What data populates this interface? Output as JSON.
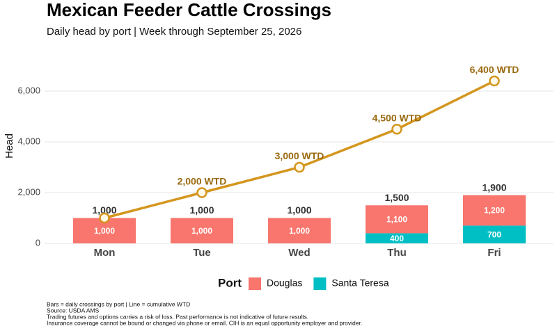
{
  "chart_data": {
    "type": "bar",
    "stacked": true,
    "title": "Mexican Feeder Cattle Crossings",
    "subtitle": "Daily head by port | Week through September 25, 2026",
    "y_label": "Head",
    "categories": [
      "Mon",
      "Tue",
      "Wed",
      "Thu",
      "Fri"
    ],
    "series": [
      {
        "name": "Santa Teresa",
        "color": "#00bfc4",
        "values": [
          0,
          0,
          0,
          400,
          700
        ],
        "value_labels": [
          null,
          null,
          null,
          "400",
          "700"
        ]
      },
      {
        "name": "Douglas",
        "color": "#f8766d",
        "values": [
          1000,
          1000,
          1000,
          1100,
          1200
        ],
        "value_labels": [
          "1,000",
          "1,000",
          "1,000",
          "1,100",
          "1,200"
        ]
      }
    ],
    "total_labels": [
      "1,000",
      "1,000",
      "1,000",
      "1,500",
      "1,900"
    ],
    "line": {
      "color": "#d4961e",
      "label_color": "#9a6a10",
      "values": [
        1000,
        2000,
        3000,
        4500,
        6400
      ],
      "value_labels": [
        null,
        "2,000 WTD",
        "3,000 WTD",
        "4,500 WTD",
        "6,400 WTD"
      ]
    },
    "ylim": [
      0,
      7000
    ],
    "yticks": [
      0,
      {
        "value": 2000,
        "label": "2,000"
      },
      {
        "value": 4000,
        "label": "4,000"
      },
      {
        "value": 6000,
        "label": "6,000"
      }
    ],
    "grid": true,
    "legend": {
      "title": "Port",
      "position": "bottom",
      "order": [
        1,
        0
      ]
    },
    "notes": [
      "Bars = daily crossings by port | Line = cumulative WTD",
      "Source: USDA AMS",
      "Trading futures and options carries a risk of loss. Past performance is not indicative of future results.",
      " Insurance coverage cannot be bound or changed via phone or email. CIH is an equal opportunity employer and provider."
    ]
  }
}
